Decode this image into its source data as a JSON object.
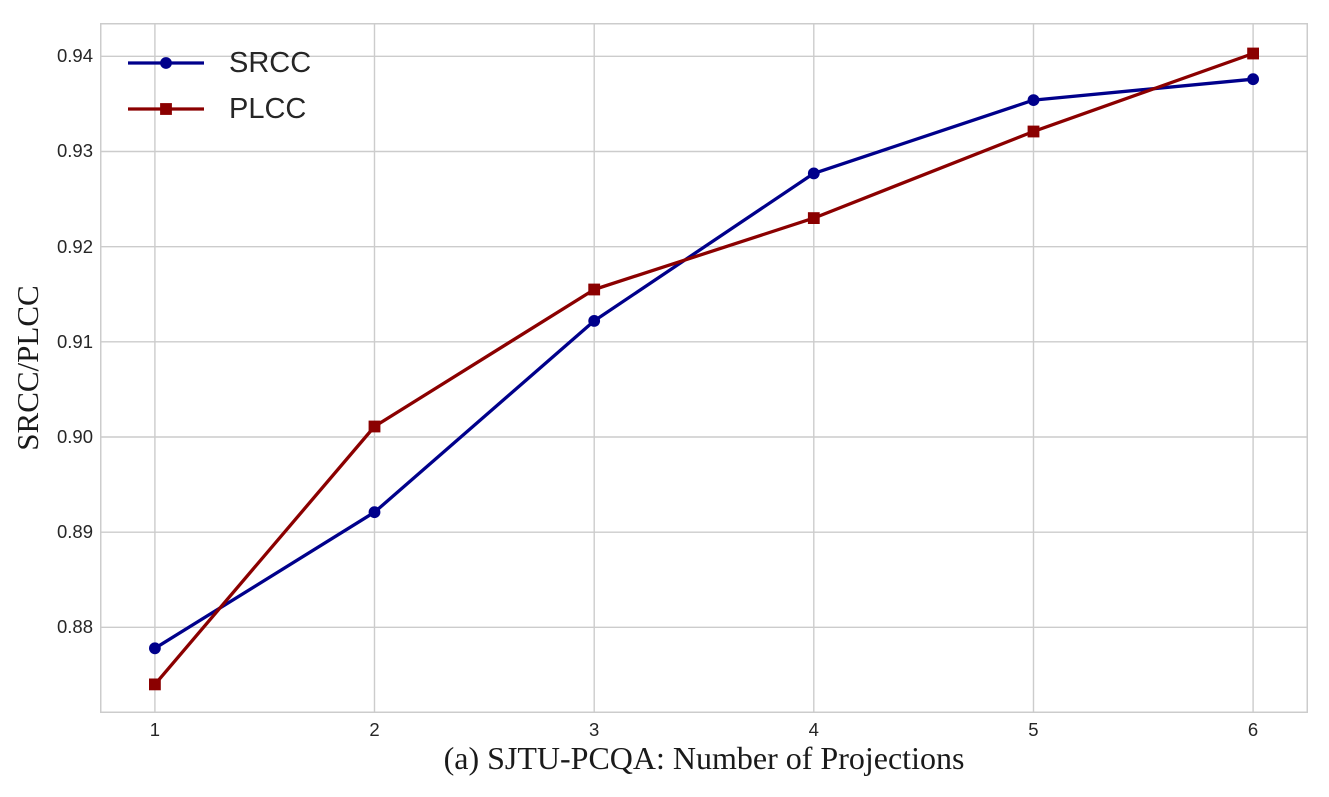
{
  "chart_data": {
    "type": "line",
    "x": [
      1,
      2,
      3,
      4,
      5,
      6
    ],
    "xticks": [
      1,
      2,
      3,
      4,
      5,
      6
    ],
    "yticks": [
      0.88,
      0.89,
      0.9,
      0.91,
      0.92,
      0.93,
      0.94
    ],
    "xlim": [
      0.75,
      6.25
    ],
    "ylim": [
      0.871,
      0.9435
    ],
    "grid": true,
    "legend_position": "upper-left",
    "series": [
      {
        "name": "SRCC",
        "marker": "circle",
        "color": "#00008b",
        "values": [
          0.8778,
          0.8921,
          0.9122,
          0.9277,
          0.9354,
          0.9376
        ]
      },
      {
        "name": "PLCC",
        "marker": "square",
        "color": "#8b0000",
        "values": [
          0.874,
          0.9011,
          0.9155,
          0.923,
          0.9321,
          0.9403
        ]
      }
    ],
    "ylabel": "SRCC/PLCC",
    "xlabel": "(a) SJTU-PCQA: Number of Projections",
    "title": "",
    "colors": {
      "grid": "#cccccc",
      "spine": "#cccccc",
      "tick_text": "#262626",
      "label_text": "#1a1a1a",
      "background": "#ffffff"
    }
  }
}
